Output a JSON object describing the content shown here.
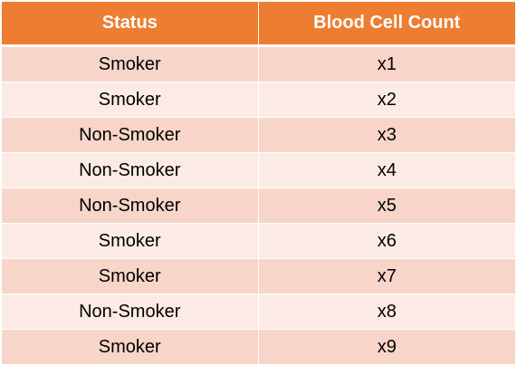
{
  "table": {
    "headers": {
      "status": "Status",
      "count": "Blood Cell Count"
    },
    "rows": [
      {
        "status": "Smoker",
        "count": "x1"
      },
      {
        "status": "Smoker",
        "count": "x2"
      },
      {
        "status": "Non-Smoker",
        "count": "x3"
      },
      {
        "status": "Non-Smoker",
        "count": "x4"
      },
      {
        "status": "Non-Smoker",
        "count": "x5"
      },
      {
        "status": "Smoker",
        "count": "x6"
      },
      {
        "status": "Smoker",
        "count": "x7"
      },
      {
        "status": "Non-Smoker",
        "count": "x8"
      },
      {
        "status": "Smoker",
        "count": "x9"
      }
    ]
  },
  "colors": {
    "header": "#ed7d31",
    "row_band_dark": "#f8d5c9",
    "row_band_light": "#fcebe5"
  }
}
